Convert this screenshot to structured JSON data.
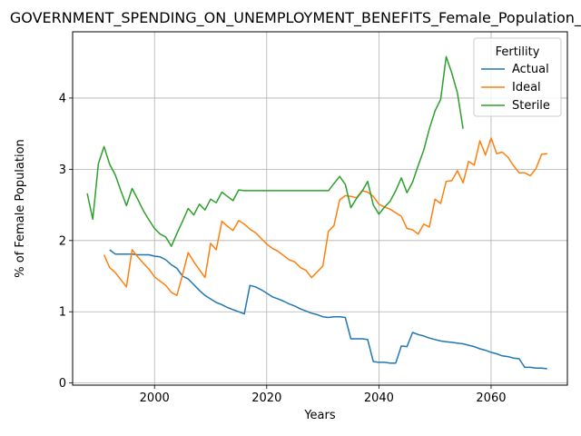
{
  "chart_data": {
    "type": "line",
    "title": "GOVERNMENT_SPENDING_ON_UNEMPLOYMENT_BENEFITS_Female_Population_Scaled",
    "xlabel": "Years",
    "ylabel": "% of Female Population",
    "xlim": [
      1985.4,
      2073.6
    ],
    "ylim": [
      -0.03,
      4.93
    ],
    "xticks": [
      2000,
      2020,
      2040,
      2060
    ],
    "yticks": [
      0,
      1,
      2,
      3,
      4
    ],
    "grid": true,
    "legend": {
      "title": "Fertility",
      "position": "top-right"
    },
    "series": [
      {
        "name": "Actual",
        "color": "#1f77b4",
        "x": [
          1992,
          1993,
          1994,
          1995,
          1996,
          1997,
          1998,
          1999,
          2000,
          2001,
          2002,
          2003,
          2004,
          2005,
          2006,
          2007,
          2008,
          2009,
          2010,
          2011,
          2012,
          2013,
          2014,
          2015,
          2016,
          2017,
          2018,
          2019,
          2020,
          2021,
          2022,
          2023,
          2024,
          2025,
          2026,
          2027,
          2028,
          2029,
          2030,
          2031,
          2032,
          2033,
          2034,
          2035,
          2036,
          2037,
          2038,
          2039,
          2040,
          2041,
          2042,
          2043,
          2044,
          2045,
          2046,
          2047,
          2048,
          2049,
          2050,
          2051,
          2052,
          2053,
          2054,
          2055,
          2056,
          2057,
          2058,
          2059,
          2060,
          2061,
          2062,
          2063,
          2064,
          2065,
          2066,
          2067,
          2068,
          2069,
          2070
        ],
        "values": [
          1.87,
          1.81,
          1.81,
          1.81,
          1.81,
          1.8,
          1.8,
          1.8,
          1.78,
          1.77,
          1.73,
          1.66,
          1.61,
          1.5,
          1.46,
          1.38,
          1.3,
          1.23,
          1.18,
          1.13,
          1.1,
          1.06,
          1.03,
          1.0,
          0.97,
          1.37,
          1.35,
          1.31,
          1.26,
          1.21,
          1.18,
          1.15,
          1.11,
          1.08,
          1.04,
          1.01,
          0.98,
          0.96,
          0.93,
          0.92,
          0.93,
          0.93,
          0.92,
          0.62,
          0.62,
          0.62,
          0.61,
          0.3,
          0.29,
          0.29,
          0.28,
          0.28,
          0.52,
          0.51,
          0.71,
          0.68,
          0.66,
          0.63,
          0.61,
          0.59,
          0.58,
          0.57,
          0.56,
          0.55,
          0.53,
          0.51,
          0.48,
          0.46,
          0.43,
          0.41,
          0.38,
          0.37,
          0.35,
          0.34,
          0.22,
          0.22,
          0.21,
          0.21,
          0.2
        ]
      },
      {
        "name": "Ideal",
        "color": "#ff7f0e",
        "x": [
          1991,
          1992,
          1993,
          1994,
          1995,
          1996,
          1997,
          1998,
          1999,
          2000,
          2001,
          2002,
          2003,
          2004,
          2005,
          2006,
          2007,
          2008,
          2009,
          2010,
          2011,
          2012,
          2013,
          2014,
          2015,
          2016,
          2017,
          2018,
          2019,
          2020,
          2021,
          2022,
          2023,
          2024,
          2025,
          2026,
          2027,
          2028,
          2029,
          2030,
          2031,
          2032,
          2033,
          2034,
          2035,
          2036,
          2037,
          2038,
          2039,
          2040,
          2041,
          2042,
          2043,
          2044,
          2045,
          2046,
          2047,
          2048,
          2049,
          2050,
          2051,
          2052,
          2053,
          2054,
          2055,
          2056,
          2057,
          2058,
          2059,
          2060,
          2061,
          2062,
          2063,
          2064,
          2065,
          2066,
          2067,
          2068,
          2069,
          2070
        ],
        "values": [
          1.8,
          1.62,
          1.55,
          1.45,
          1.35,
          1.87,
          1.77,
          1.68,
          1.6,
          1.49,
          1.43,
          1.37,
          1.27,
          1.23,
          1.52,
          1.83,
          1.7,
          1.59,
          1.48,
          1.96,
          1.87,
          2.27,
          2.2,
          2.14,
          2.28,
          2.23,
          2.16,
          2.11,
          2.03,
          1.95,
          1.89,
          1.85,
          1.79,
          1.73,
          1.7,
          1.62,
          1.58,
          1.48,
          1.56,
          1.64,
          2.13,
          2.21,
          2.57,
          2.63,
          2.62,
          2.6,
          2.7,
          2.68,
          2.62,
          2.51,
          2.47,
          2.44,
          2.39,
          2.34,
          2.17,
          2.15,
          2.09,
          2.23,
          2.19,
          2.58,
          2.52,
          2.83,
          2.84,
          2.98,
          2.81,
          3.11,
          3.06,
          3.4,
          3.2,
          3.44,
          3.22,
          3.24,
          3.17,
          3.05,
          2.95,
          2.95,
          2.91,
          3.01,
          3.21,
          3.22
        ]
      },
      {
        "name": "Sterile",
        "color": "#2ca02c",
        "x": [
          1988,
          1989,
          1990,
          1991,
          1992,
          1993,
          1994,
          1995,
          1996,
          1997,
          1998,
          1999,
          2000,
          2001,
          2002,
          2003,
          2004,
          2005,
          2006,
          2007,
          2008,
          2009,
          2010,
          2011,
          2012,
          2013,
          2014,
          2015,
          2016,
          2017,
          2018,
          2019,
          2020,
          2021,
          2022,
          2023,
          2024,
          2025,
          2026,
          2027,
          2028,
          2029,
          2030,
          2031,
          2032,
          2033,
          2034,
          2035,
          2036,
          2037,
          2038,
          2039,
          2040,
          2041,
          2042,
          2043,
          2044,
          2045,
          2046,
          2047,
          2048,
          2049,
          2050,
          2051,
          2052,
          2053,
          2054,
          2055
        ],
        "values": [
          2.66,
          2.3,
          3.08,
          3.32,
          3.07,
          2.92,
          2.7,
          2.49,
          2.73,
          2.58,
          2.42,
          2.29,
          2.17,
          2.09,
          2.05,
          1.92,
          2.1,
          2.27,
          2.45,
          2.36,
          2.51,
          2.43,
          2.58,
          2.53,
          2.68,
          2.62,
          2.56,
          2.71,
          2.7,
          2.7,
          2.7,
          2.7,
          2.7,
          2.7,
          2.7,
          2.7,
          2.7,
          2.7,
          2.7,
          2.7,
          2.7,
          2.7,
          2.7,
          2.7,
          2.8,
          2.9,
          2.79,
          2.46,
          2.59,
          2.69,
          2.83,
          2.5,
          2.37,
          2.47,
          2.55,
          2.7,
          2.88,
          2.67,
          2.82,
          3.05,
          3.27,
          3.57,
          3.82,
          3.98,
          4.58,
          4.35,
          4.07,
          3.57
        ]
      }
    ]
  }
}
